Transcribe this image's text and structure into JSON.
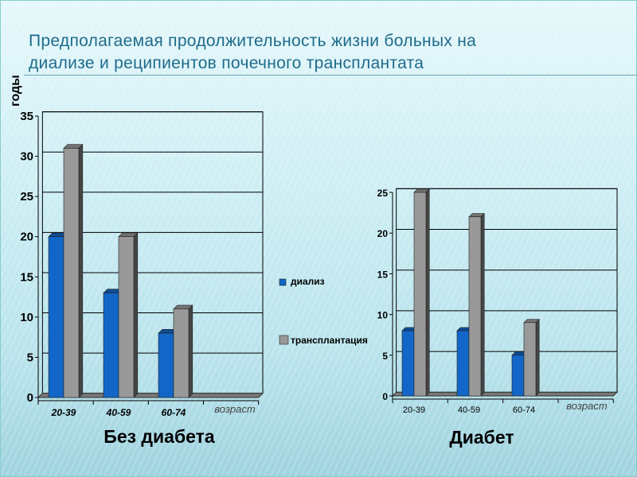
{
  "title": [
    "Предполагаемая продолжительность жизни больных на",
    "диализе  и реципиентов почечного трансплантата"
  ],
  "colors": {
    "dialysis": "#1266c8",
    "transplant": "#999999",
    "title": "#1f6b8c"
  },
  "chart_data": [
    {
      "type": "bar",
      "title": "Без диабета",
      "ylabel": "годы",
      "xlabel": "возраст",
      "categories": [
        "20-39",
        "40-59",
        "60-74"
      ],
      "ylim": [
        0,
        35
      ],
      "yticks": [
        0,
        5,
        10,
        15,
        20,
        25,
        30,
        35
      ],
      "series": [
        {
          "name": "диализ",
          "values": [
            20,
            13,
            8
          ]
        },
        {
          "name": "трансплантация",
          "values": [
            31,
            20,
            11
          ]
        }
      ],
      "grid": true,
      "legend": "right"
    },
    {
      "type": "bar",
      "title": "Диабет",
      "xlabel": "возраст",
      "categories": [
        "20-39",
        "40-59",
        "60-74"
      ],
      "ylim": [
        0,
        25
      ],
      "yticks": [
        0,
        5,
        10,
        15,
        20,
        25
      ],
      "series": [
        {
          "name": "диализ",
          "values": [
            8,
            8,
            5
          ]
        },
        {
          "name": "трансплантация",
          "values": [
            25,
            22,
            9
          ]
        }
      ],
      "grid": true,
      "legend": "left"
    }
  ]
}
